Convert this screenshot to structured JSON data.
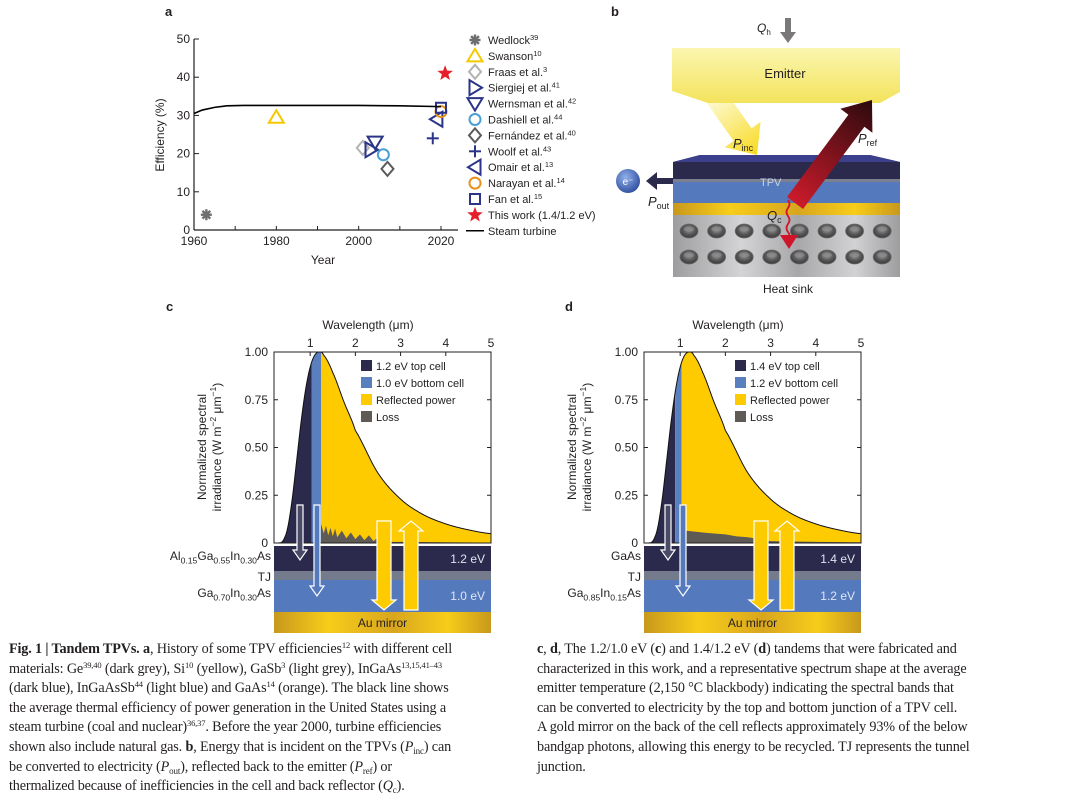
{
  "panel_labels": {
    "a": "a",
    "b": "b",
    "c": "c",
    "d": "d"
  },
  "chart_data": [
    {
      "panel": "a",
      "type": "scatter",
      "xlabel": "Year",
      "ylabel": "Efficiency (%)",
      "xlim": [
        1960,
        2024
      ],
      "ylim": [
        0,
        50
      ],
      "xticks": [
        1960,
        1980,
        2000,
        2020
      ],
      "yticks": [
        0,
        10,
        20,
        30,
        40,
        50
      ],
      "legend_position": "right",
      "series": [
        {
          "name": "Wedlock",
          "ref": "39",
          "marker": "asterisk",
          "color": "#6d6e70",
          "x": [
            1963
          ],
          "y": [
            4
          ]
        },
        {
          "name": "Swanson",
          "ref": "10",
          "marker": "triangle-up",
          "color": "#f6c800",
          "x": [
            1980
          ],
          "y": [
            29.5
          ]
        },
        {
          "name": "Fraas et al.",
          "ref": "3",
          "marker": "diamond",
          "color": "#b3b3b3",
          "x": [
            2001
          ],
          "y": [
            21.5
          ]
        },
        {
          "name": "Siergiej et al.",
          "ref": "41",
          "marker": "triangle-right",
          "color": "#2b3488",
          "x": [
            2003
          ],
          "y": [
            21
          ]
        },
        {
          "name": "Wernsman et al.",
          "ref": "42",
          "marker": "triangle-down",
          "color": "#2b3488",
          "x": [
            2004
          ],
          "y": [
            23
          ]
        },
        {
          "name": "Dashiell et al.",
          "ref": "44",
          "marker": "circle",
          "color": "#4a9fd8",
          "x": [
            2006
          ],
          "y": [
            19.7
          ]
        },
        {
          "name": "Fernández et al.",
          "ref": "40",
          "marker": "diamond",
          "color": "#5a5a5a",
          "x": [
            2007
          ],
          "y": [
            16
          ]
        },
        {
          "name": "Woolf et al.",
          "ref": "43",
          "marker": "plus",
          "color": "#2b3488",
          "x": [
            2018
          ],
          "y": [
            24
          ]
        },
        {
          "name": "Omair et al.",
          "ref": "13",
          "marker": "triangle-left",
          "color": "#2b3488",
          "x": [
            2019
          ],
          "y": [
            29
          ]
        },
        {
          "name": "Narayan et al.",
          "ref": "14",
          "marker": "circle",
          "color": "#e8901a",
          "x": [
            2020
          ],
          "y": [
            31
          ]
        },
        {
          "name": "Fan et al.",
          "ref": "15",
          "marker": "square",
          "color": "#2b3488",
          "x": [
            2020
          ],
          "y": [
            32
          ]
        },
        {
          "name": "This work (1.4/1.2 eV)",
          "ref": "",
          "marker": "star",
          "color": "#e61e2a",
          "x": [
            2021
          ],
          "y": [
            41
          ]
        },
        {
          "name": "Steam turbine",
          "ref": "",
          "marker": "line",
          "color": "#000000",
          "x": [
            1960,
            1962,
            1965,
            1968,
            1972,
            1980,
            1990,
            2000,
            2010,
            2020
          ],
          "y": [
            30.5,
            31.4,
            32.1,
            32.5,
            32.6,
            32.6,
            32.6,
            32.6,
            32.5,
            32.3
          ]
        }
      ]
    },
    {
      "panel": "c",
      "type": "area",
      "xlabel": "Wavelength (μm)",
      "ylabel": [
        {
          "t": "Normalized spectral"
        },
        {
          "t": "irradiance (W m"
        },
        {
          "t": "−2",
          "s": "sup"
        },
        {
          "t": " μm"
        },
        {
          "t": "−1",
          "s": "sup"
        },
        {
          "t": ")"
        }
      ],
      "xlim": [
        0.2,
        5
      ],
      "ylim": [
        0,
        1
      ],
      "xticks": [
        "1",
        "2",
        "3",
        "4",
        "5"
      ],
      "yticks": [
        "0",
        "0.25",
        "0.50",
        "0.75",
        "1.00"
      ],
      "legend_position": "top-right",
      "spectrum": {
        "x": [
          0.3,
          0.4,
          0.5,
          0.6,
          0.7,
          0.8,
          0.9,
          1.0,
          1.1,
          1.2,
          1.3,
          1.5,
          1.75,
          2.0,
          2.5,
          3.0,
          3.5,
          4.0,
          4.5,
          5.0
        ],
        "y": [
          0.0,
          0.012,
          0.077,
          0.225,
          0.429,
          0.636,
          0.805,
          0.921,
          0.983,
          1.0,
          0.983,
          0.892,
          0.737,
          0.589,
          0.366,
          0.23,
          0.149,
          0.1,
          0.069,
          0.049
        ]
      },
      "bands": [
        {
          "name": "1.2 eV top cell",
          "color": "#2b2a4c",
          "to_um": 1.03
        },
        {
          "name": "1.0 eV bottom cell",
          "color": "#5a7fbf",
          "to_um": 1.24
        },
        {
          "name": "Reflected power",
          "color": "#fecb00",
          "to_um": 5.0
        }
      ],
      "loss": {
        "name": "Loss",
        "color": "#5e5a55",
        "x": [
          1.24,
          1.3,
          1.35,
          1.4,
          1.45,
          1.5,
          1.55,
          1.6,
          1.7,
          1.8,
          1.9,
          2.0,
          2.1,
          2.2,
          2.3,
          2.4,
          2.5,
          2.6,
          3.0,
          4.0,
          5.0
        ],
        "y": [
          0.1,
          0.05,
          0.09,
          0.04,
          0.08,
          0.035,
          0.075,
          0.03,
          0.065,
          0.025,
          0.055,
          0.02,
          0.045,
          0.015,
          0.04,
          0.01,
          0.03,
          0.005,
          0.006,
          0.004,
          0.002
        ]
      },
      "stack": {
        "top_label": [
          {
            "t": "Al"
          },
          {
            "t": "0.15",
            "s": "sub"
          },
          {
            "t": "Ga"
          },
          {
            "t": "0.55",
            "s": "sub"
          },
          {
            "t": "In"
          },
          {
            "t": "0.30",
            "s": "sub"
          },
          {
            "t": "As"
          }
        ],
        "tj_label": "TJ",
        "bottom_label": [
          {
            "t": "Ga"
          },
          {
            "t": "0.70",
            "s": "sub"
          },
          {
            "t": "In"
          },
          {
            "t": "0.30",
            "s": "sub"
          },
          {
            "t": "As"
          }
        ],
        "top_energy": "1.2 eV",
        "bottom_energy": "1.0 eV",
        "mirror": "Au mirror"
      }
    },
    {
      "panel": "d",
      "type": "area",
      "xlabel": "Wavelength (μm)",
      "ylabel": [
        {
          "t": "Normalized spectral"
        },
        {
          "t": "irradiance (W m"
        },
        {
          "t": "−2",
          "s": "sup"
        },
        {
          "t": " μm"
        },
        {
          "t": "−1",
          "s": "sup"
        },
        {
          "t": ")"
        }
      ],
      "xlim": [
        0.2,
        5
      ],
      "ylim": [
        0,
        1
      ],
      "xticks": [
        "1",
        "2",
        "3",
        "4",
        "5"
      ],
      "yticks": [
        "0",
        "0.25",
        "0.50",
        "0.75",
        "1.00"
      ],
      "legend_position": "top-right",
      "spectrum": {
        "x": [
          0.3,
          0.4,
          0.5,
          0.6,
          0.7,
          0.8,
          0.9,
          1.0,
          1.1,
          1.2,
          1.3,
          1.5,
          1.75,
          2.0,
          2.5,
          3.0,
          3.5,
          4.0,
          4.5,
          5.0
        ],
        "y": [
          0.0,
          0.012,
          0.077,
          0.225,
          0.429,
          0.636,
          0.805,
          0.921,
          0.983,
          1.0,
          0.983,
          0.892,
          0.737,
          0.589,
          0.366,
          0.23,
          0.149,
          0.1,
          0.069,
          0.049
        ]
      },
      "bands": [
        {
          "name": "1.4 eV top cell",
          "color": "#2b2a4c",
          "to_um": 0.89
        },
        {
          "name": "1.2 eV bottom cell",
          "color": "#5a7fbf",
          "to_um": 1.03
        },
        {
          "name": "Reflected power",
          "color": "#fecb00",
          "to_um": 5.0
        }
      ],
      "loss": {
        "name": "Loss",
        "color": "#5e5a55",
        "x": [
          1.03,
          1.1,
          1.3,
          1.5,
          1.75,
          2.0,
          2.25,
          2.5,
          2.75,
          3.0,
          3.5,
          4.0,
          5.0
        ],
        "y": [
          0.07,
          0.065,
          0.06,
          0.055,
          0.05,
          0.045,
          0.035,
          0.03,
          0.02,
          0.01,
          0.008,
          0.006,
          0.004
        ]
      },
      "stack": {
        "top_label": [
          {
            "t": "GaAs"
          }
        ],
        "tj_label": "TJ",
        "bottom_label": [
          {
            "t": "Ga"
          },
          {
            "t": "0.85",
            "s": "sub"
          },
          {
            "t": "In"
          },
          {
            "t": "0.15",
            "s": "sub"
          },
          {
            "t": "As"
          }
        ],
        "top_energy": "1.4 eV",
        "bottom_energy": "1.2 eV",
        "mirror": "Au mirror"
      }
    }
  ],
  "panel_b": {
    "qh": "Q",
    "qh_sub": "h",
    "emitter": "Emitter",
    "pinc": "P",
    "pinc_sub": "inc",
    "pref": "P",
    "pref_sub": "ref",
    "tpv": "TPV",
    "electron": "e⁻",
    "pout": "P",
    "pout_sub": "out",
    "qc": "Q",
    "qc_sub": "c",
    "heat_sink": "Heat sink"
  },
  "caption": {
    "left": [
      [
        {
          "t": "Fig. 1 | Tandem TPVs. a",
          "s": "b"
        },
        {
          "t": ", History of some TPV efficiencies"
        },
        {
          "t": "12",
          "s": "sup"
        },
        {
          "t": " with different cell"
        }
      ],
      [
        {
          "t": "materials: Ge"
        },
        {
          "t": "39,40",
          "s": "sup"
        },
        {
          "t": " (dark grey), Si"
        },
        {
          "t": "10",
          "s": "sup"
        },
        {
          "t": " (yellow), GaSb"
        },
        {
          "t": "3",
          "s": "sup"
        },
        {
          "t": " (light grey), InGaAs"
        },
        {
          "t": "13,15,41–43",
          "s": "sup"
        }
      ],
      [
        {
          "t": "(dark blue), InGaAsSb"
        },
        {
          "t": "44",
          "s": "sup"
        },
        {
          "t": " (light blue) and GaAs"
        },
        {
          "t": "14",
          "s": "sup"
        },
        {
          "t": " (orange). The black line shows"
        }
      ],
      [
        {
          "t": "the average thermal efficiency of power generation in the United States using a"
        }
      ],
      [
        {
          "t": "steam turbine (coal and nuclear)"
        },
        {
          "t": "36,37",
          "s": "sup"
        },
        {
          "t": ". Before the year 2000, turbine efficiencies"
        }
      ],
      [
        {
          "t": "shown also include natural gas. "
        },
        {
          "t": "b",
          "s": "b"
        },
        {
          "t": ", Energy that is incident on the TPVs ("
        },
        {
          "t": "P",
          "s": "i"
        },
        {
          "t": "inc",
          "s": "sub"
        },
        {
          "t": ") can"
        }
      ],
      [
        {
          "t": "be converted to electricity ("
        },
        {
          "t": "P",
          "s": "i"
        },
        {
          "t": "out",
          "s": "sub"
        },
        {
          "t": "), reflected back to the emitter ("
        },
        {
          "t": "P",
          "s": "i"
        },
        {
          "t": "ref",
          "s": "sub"
        },
        {
          "t": ") or"
        }
      ],
      [
        {
          "t": "thermalized because of inefficiencies in the cell and back reflector ("
        },
        {
          "t": "Q",
          "s": "i"
        },
        {
          "t": "c",
          "s": "sub"
        },
        {
          "t": ")."
        }
      ]
    ],
    "right": [
      [
        {
          "t": "c",
          "s": "b"
        },
        {
          "t": ", "
        },
        {
          "t": "d",
          "s": "b"
        },
        {
          "t": ", The 1.2/1.0 eV ("
        },
        {
          "t": "c",
          "s": "b"
        },
        {
          "t": ") and 1.4/1.2 eV ("
        },
        {
          "t": "d",
          "s": "b"
        },
        {
          "t": ") tandems that were fabricated and"
        }
      ],
      [
        {
          "t": "characterized in this work, and a representative spectrum shape at the average"
        }
      ],
      [
        {
          "t": "emitter temperature (2,150 °C blackbody) indicating the spectral bands that"
        }
      ],
      [
        {
          "t": "can be converted to electricity by the top and bottom junction of a TPV cell."
        }
      ],
      [
        {
          "t": "A gold mirror on the back of the cell reflects approximately 93% of the below"
        }
      ],
      [
        {
          "t": "bandgap photons, allowing this energy to be recycled. TJ represents the tunnel"
        }
      ],
      [
        {
          "t": "junction."
        }
      ]
    ]
  }
}
